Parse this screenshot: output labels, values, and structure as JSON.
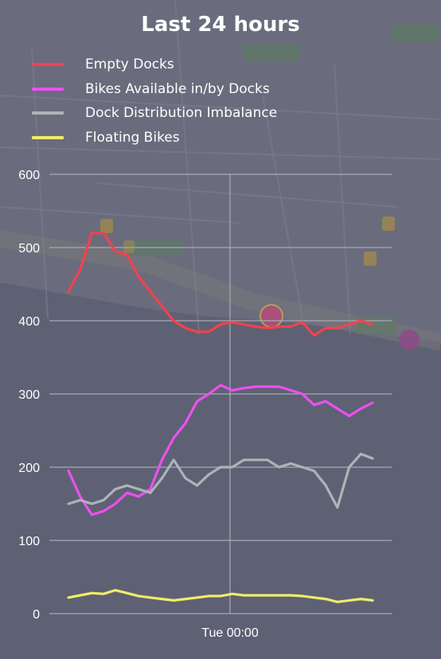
{
  "chart_data": {
    "type": "line",
    "title": "Last 24 hours",
    "xlabel": "",
    "ylabel": "",
    "ylim": [
      0,
      600
    ],
    "yticks": [
      0,
      100,
      200,
      300,
      400,
      500,
      600
    ],
    "xticks": [
      "Tue 00:00"
    ],
    "grid": true,
    "legend_position": "top-left",
    "x_hours": [
      0,
      1,
      2,
      3,
      4,
      5,
      6,
      7,
      8,
      9,
      10,
      11,
      12,
      13,
      14,
      15,
      16,
      17,
      18,
      19,
      20,
      21,
      22,
      23,
      24,
      25,
      26
    ],
    "series": [
      {
        "name": "Empty Docks",
        "color": "#f2424e",
        "values": [
          440,
          470,
          520,
          520,
          495,
          490,
          460,
          440,
          420,
          400,
          390,
          385,
          385,
          395,
          398,
          395,
          392,
          390,
          392,
          392,
          398,
          380,
          390,
          390,
          395,
          400,
          395
        ]
      },
      {
        "name": "Bikes Available in/by Docks",
        "color": "#ee4ff0",
        "values": [
          195,
          160,
          135,
          140,
          150,
          165,
          160,
          170,
          210,
          240,
          260,
          290,
          300,
          312,
          305,
          308,
          310,
          310,
          310,
          305,
          300,
          285,
          290,
          280,
          270,
          280,
          288
        ]
      },
      {
        "name": "Dock Distribution Imbalance",
        "color": "#aeb3b8",
        "values": [
          150,
          155,
          150,
          155,
          170,
          175,
          170,
          165,
          185,
          210,
          185,
          175,
          190,
          200,
          200,
          210,
          210,
          210,
          200,
          205,
          200,
          195,
          175,
          145,
          200,
          218,
          212
        ]
      },
      {
        "name": "Floating Bikes",
        "color": "#eded6a",
        "values": [
          22,
          25,
          28,
          27,
          32,
          28,
          24,
          22,
          20,
          18,
          20,
          22,
          24,
          24,
          27,
          25,
          25,
          25,
          25,
          25,
          24,
          22,
          20,
          16,
          18,
          20,
          18
        ]
      }
    ]
  }
}
